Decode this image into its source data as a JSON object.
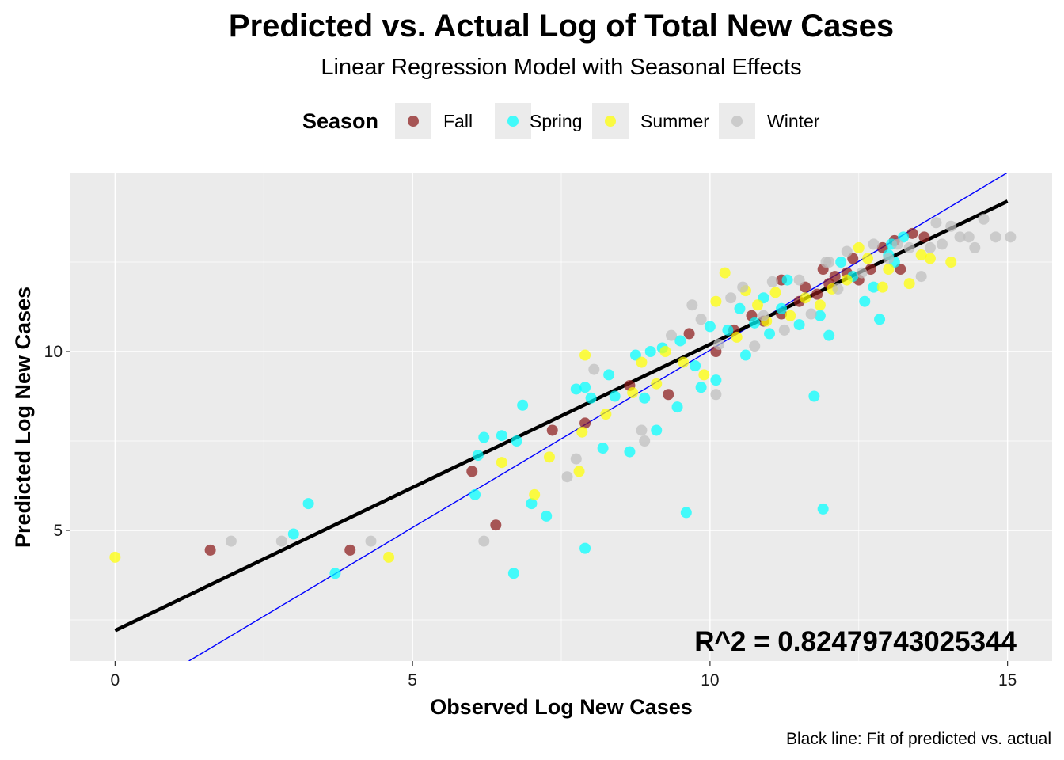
{
  "chart_data": {
    "type": "scatter",
    "title": "Predicted vs. Actual Log of Total New Cases",
    "subtitle": "Linear Regression Model with Seasonal Effects",
    "xlabel": "Observed Log New Cases",
    "ylabel": "Predicted Log New Cases",
    "caption": "Black line: Fit of predicted vs. actual",
    "annotation": "R^2 = 0.82479743025344",
    "xlim": [
      -0.75,
      15.75
    ],
    "ylim": [
      1.35,
      15.0
    ],
    "x_ticks": [
      0,
      5,
      10,
      15
    ],
    "y_ticks": [
      5,
      10
    ],
    "x_tick_labels": [
      "0",
      "5",
      "10",
      "15"
    ],
    "y_tick_labels": [
      "5",
      "10"
    ],
    "grid": true,
    "legend_position": "top",
    "legend": {
      "title": "Season",
      "entries": [
        {
          "label": "Fall",
          "color": "#8b1a1a"
        },
        {
          "label": "Spring",
          "color": "#00ffff"
        },
        {
          "label": "Summer",
          "color": "#ffff00"
        },
        {
          "label": "Winter",
          "color": "#bebebe"
        }
      ]
    },
    "fit_line": {
      "name": "Fit of predicted vs. actual",
      "color": "#000000",
      "x": [
        0,
        15
      ],
      "y": [
        2.2,
        14.2
      ]
    },
    "reference_line": {
      "color": "#0000ff",
      "x": [
        1.24,
        15.0
      ],
      "y": [
        1.35,
        15.0
      ]
    },
    "series": [
      {
        "name": "Fall",
        "color": "#8b1a1a",
        "points": [
          [
            1.6,
            4.45
          ],
          [
            3.95,
            4.45
          ],
          [
            6.0,
            6.65
          ],
          [
            6.4,
            5.15
          ],
          [
            7.35,
            7.8
          ],
          [
            7.9,
            8.0
          ],
          [
            8.65,
            9.05
          ],
          [
            9.3,
            8.8
          ],
          [
            9.65,
            10.5
          ],
          [
            10.1,
            10.0
          ],
          [
            10.4,
            10.6
          ],
          [
            10.7,
            11.0
          ],
          [
            10.9,
            10.85
          ],
          [
            11.2,
            11.05
          ],
          [
            11.5,
            11.4
          ],
          [
            11.6,
            11.8
          ],
          [
            11.8,
            11.6
          ],
          [
            12.0,
            11.9
          ],
          [
            12.1,
            12.1
          ],
          [
            12.3,
            12.2
          ],
          [
            12.5,
            12.0
          ],
          [
            12.7,
            12.3
          ],
          [
            12.9,
            12.9
          ],
          [
            13.1,
            13.1
          ],
          [
            13.2,
            12.3
          ],
          [
            13.4,
            13.3
          ],
          [
            13.6,
            13.2
          ],
          [
            12.4,
            12.6
          ],
          [
            11.9,
            12.3
          ],
          [
            11.2,
            12.0
          ]
        ]
      },
      {
        "name": "Spring",
        "color": "#00ffff",
        "points": [
          [
            3.0,
            4.9
          ],
          [
            3.25,
            5.75
          ],
          [
            3.7,
            3.8
          ],
          [
            6.05,
            6.0
          ],
          [
            6.1,
            7.1
          ],
          [
            6.2,
            7.6
          ],
          [
            6.5,
            7.65
          ],
          [
            6.7,
            3.8
          ],
          [
            6.75,
            7.5
          ],
          [
            6.85,
            8.5
          ],
          [
            7.0,
            5.75
          ],
          [
            7.25,
            5.4
          ],
          [
            7.75,
            8.95
          ],
          [
            7.9,
            4.5
          ],
          [
            7.9,
            9.0
          ],
          [
            8.0,
            8.7
          ],
          [
            8.2,
            7.3
          ],
          [
            8.3,
            9.35
          ],
          [
            8.4,
            8.75
          ],
          [
            8.65,
            7.2
          ],
          [
            8.75,
            9.9
          ],
          [
            8.9,
            8.7
          ],
          [
            9.0,
            10.0
          ],
          [
            9.1,
            7.8
          ],
          [
            9.2,
            10.1
          ],
          [
            9.45,
            8.45
          ],
          [
            9.5,
            10.3
          ],
          [
            9.6,
            5.5
          ],
          [
            9.75,
            9.6
          ],
          [
            9.85,
            9.0
          ],
          [
            10.0,
            10.7
          ],
          [
            10.1,
            9.2
          ],
          [
            10.3,
            10.6
          ],
          [
            10.5,
            11.2
          ],
          [
            10.6,
            9.9
          ],
          [
            10.75,
            10.8
          ],
          [
            10.9,
            11.5
          ],
          [
            11.0,
            10.5
          ],
          [
            11.2,
            11.2
          ],
          [
            11.3,
            12.0
          ],
          [
            11.5,
            10.75
          ],
          [
            11.75,
            8.75
          ],
          [
            11.85,
            11.0
          ],
          [
            11.9,
            5.6
          ],
          [
            12.0,
            10.45
          ],
          [
            12.2,
            12.5
          ],
          [
            12.4,
            12.1
          ],
          [
            12.6,
            11.4
          ],
          [
            12.75,
            11.8
          ],
          [
            12.85,
            10.9
          ],
          [
            13.0,
            12.7
          ],
          [
            13.05,
            13.0
          ],
          [
            13.25,
            13.2
          ],
          [
            13.1,
            12.5
          ]
        ]
      },
      {
        "name": "Summer",
        "color": "#ffff00",
        "points": [
          [
            0.0,
            4.25
          ],
          [
            4.6,
            4.25
          ],
          [
            6.5,
            6.9
          ],
          [
            7.05,
            6.0
          ],
          [
            7.3,
            7.05
          ],
          [
            7.8,
            6.65
          ],
          [
            7.85,
            7.75
          ],
          [
            7.9,
            9.9
          ],
          [
            8.25,
            8.25
          ],
          [
            8.7,
            8.85
          ],
          [
            8.85,
            9.7
          ],
          [
            9.1,
            9.1
          ],
          [
            9.25,
            10.0
          ],
          [
            9.55,
            9.7
          ],
          [
            9.9,
            9.35
          ],
          [
            10.1,
            11.4
          ],
          [
            10.25,
            12.2
          ],
          [
            10.45,
            10.4
          ],
          [
            10.6,
            11.7
          ],
          [
            10.8,
            11.3
          ],
          [
            10.95,
            10.85
          ],
          [
            11.1,
            11.65
          ],
          [
            11.35,
            11.0
          ],
          [
            11.6,
            11.5
          ],
          [
            11.85,
            11.3
          ],
          [
            12.05,
            11.75
          ],
          [
            12.3,
            12.0
          ],
          [
            12.65,
            12.6
          ],
          [
            12.9,
            11.8
          ],
          [
            13.0,
            12.3
          ],
          [
            13.35,
            11.9
          ],
          [
            13.55,
            12.7
          ],
          [
            13.7,
            12.6
          ],
          [
            14.05,
            12.5
          ],
          [
            12.5,
            12.9
          ]
        ]
      },
      {
        "name": "Winter",
        "color": "#bebebe",
        "points": [
          [
            1.95,
            4.7
          ],
          [
            2.8,
            4.7
          ],
          [
            4.3,
            4.7
          ],
          [
            6.2,
            4.7
          ],
          [
            7.6,
            6.5
          ],
          [
            7.75,
            7.0
          ],
          [
            8.05,
            9.5
          ],
          [
            8.85,
            7.8
          ],
          [
            8.9,
            7.5
          ],
          [
            9.35,
            10.45
          ],
          [
            9.7,
            11.3
          ],
          [
            9.85,
            10.9
          ],
          [
            10.1,
            8.8
          ],
          [
            10.15,
            10.2
          ],
          [
            10.35,
            11.5
          ],
          [
            10.55,
            11.8
          ],
          [
            10.75,
            10.15
          ],
          [
            10.9,
            11.0
          ],
          [
            11.05,
            11.95
          ],
          [
            11.25,
            10.6
          ],
          [
            11.5,
            12.0
          ],
          [
            11.7,
            11.05
          ],
          [
            11.95,
            12.5
          ],
          [
            12.15,
            11.75
          ],
          [
            12.3,
            12.8
          ],
          [
            12.55,
            12.2
          ],
          [
            12.75,
            13.0
          ],
          [
            13.0,
            12.6
          ],
          [
            13.15,
            13.0
          ],
          [
            13.35,
            12.9
          ],
          [
            13.55,
            12.1
          ],
          [
            13.7,
            12.9
          ],
          [
            13.9,
            13.0
          ],
          [
            14.05,
            13.5
          ],
          [
            14.2,
            13.2
          ],
          [
            14.35,
            13.2
          ],
          [
            14.45,
            12.9
          ],
          [
            14.6,
            13.7
          ],
          [
            14.8,
            13.2
          ],
          [
            15.05,
            13.2
          ],
          [
            13.8,
            13.6
          ],
          [
            12.0,
            12.5
          ]
        ]
      }
    ]
  }
}
